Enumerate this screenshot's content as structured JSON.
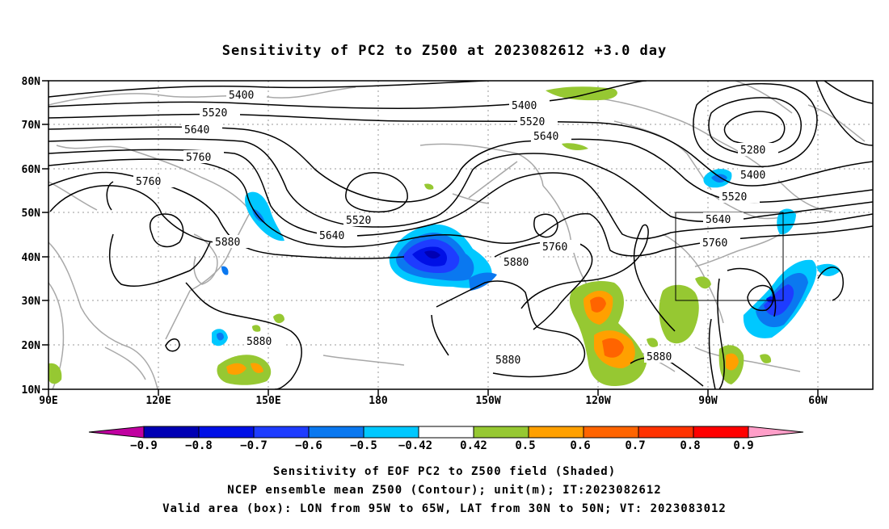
{
  "title": "Sensitivity of PC2 to Z500 at 2023082612 +3.0 day",
  "y_axis_labels": [
    "80N",
    "70N",
    "60N",
    "50N",
    "40N",
    "30N",
    "20N",
    "10N"
  ],
  "x_axis_labels": [
    "90E",
    "120E",
    "150E",
    "180",
    "150W",
    "120W",
    "90W",
    "60W"
  ],
  "contour_labels": [
    "5400",
    "5520",
    "5640",
    "5760",
    "5760",
    "5880",
    "5400",
    "5520",
    "5640",
    "5520",
    "5640",
    "5880",
    "5760",
    "5280",
    "5400",
    "5520",
    "5640",
    "5760",
    "5880",
    "5880",
    "5880"
  ],
  "colorbar": {
    "ticks": [
      "−0.9",
      "−0.8",
      "−0.7",
      "−0.6",
      "−0.5",
      "−0.42",
      "0.42",
      "0.5",
      "0.6",
      "0.7",
      "0.8",
      "0.9"
    ],
    "colors": [
      "#c000a0",
      "#0000b4",
      "#0010e6",
      "#1e3cff",
      "#0a78f0",
      "#00c8ff",
      "#ffffff",
      "#96c832",
      "#ffa000",
      "#ff6400",
      "#ff3200",
      "#ff0000",
      "#ff9ec8"
    ]
  },
  "caption": {
    "line1": "Sensitivity of EOF PC2 to Z500 field (Shaded)",
    "line2": "NCEP ensemble mean Z500 (Contour); unit(m); IT:2023082612",
    "line3": "Valid area (box): LON from 95W to 65W, LAT from 30N to 50N; VT: 2023083012"
  }
}
